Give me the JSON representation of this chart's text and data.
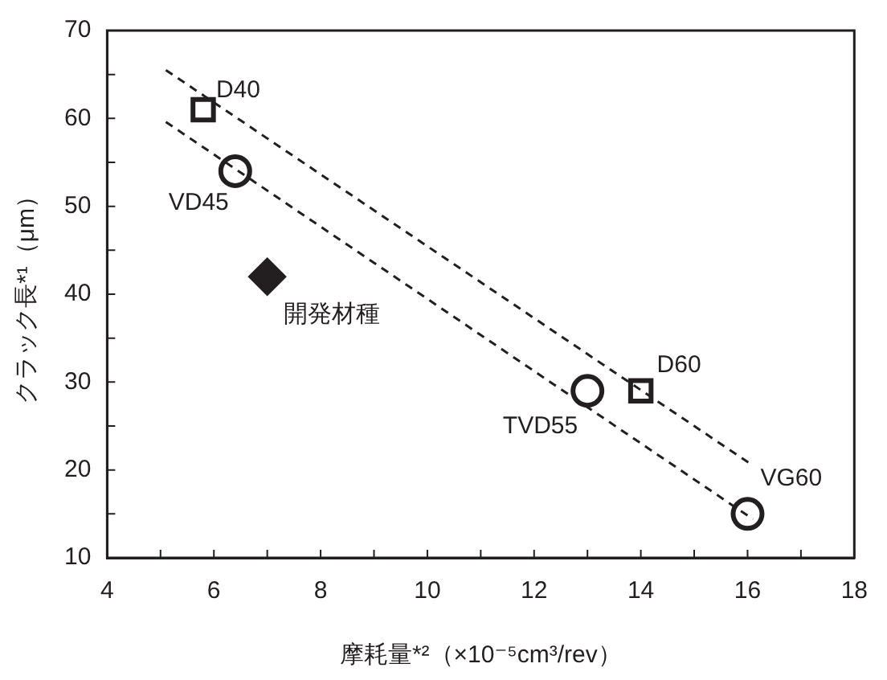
{
  "chart_data": {
    "type": "scatter",
    "xlabel": "摩耗量*²（×10⁻⁵cm³/rev）",
    "ylabel": "クラック長*¹（μm）",
    "xlim": [
      4,
      18
    ],
    "ylim": [
      10,
      70
    ],
    "xticks": [
      4,
      {
        "value": 5,
        "label": null
      },
      6,
      {
        "value": 7,
        "label": null
      },
      8,
      {
        "value": 9,
        "label": null
      },
      10,
      {
        "value": 11,
        "label": null
      },
      12,
      {
        "value": 13,
        "label": null
      },
      14,
      {
        "value": 15,
        "label": null
      },
      16,
      {
        "value": 17,
        "label": null
      },
      18
    ],
    "yticks": [
      10,
      {
        "value": 15,
        "label": null
      },
      20,
      {
        "value": 25,
        "label": null
      },
      30,
      {
        "value": 35,
        "label": null
      },
      40,
      {
        "value": 45,
        "label": null
      },
      50,
      {
        "value": 55,
        "label": null
      },
      60,
      {
        "value": 65,
        "label": null
      },
      70
    ],
    "grid": false,
    "legend": false,
    "series": [
      {
        "type": "scatter",
        "marker": "square",
        "color": "#231f20",
        "x": [
          5.8,
          14
        ],
        "values": [
          61,
          29
        ]
      },
      {
        "type": "scatter",
        "marker": "circle",
        "color": "#231f20",
        "x": [
          6.4,
          13,
          16
        ],
        "values": [
          54,
          29,
          15
        ]
      },
      {
        "type": "scatter",
        "marker": "diamond",
        "color": "#231f20",
        "x": [
          7
        ],
        "values": [
          42
        ]
      },
      {
        "type": "line",
        "marker": "none",
        "line_style": "dashed",
        "color": "#231f20",
        "x": [
          5.1,
          16.1
        ],
        "values": [
          65.5,
          20.5
        ]
      },
      {
        "type": "line",
        "marker": "none",
        "line_style": "dashed",
        "color": "#231f20",
        "x": [
          5.1,
          16.1
        ],
        "values": [
          59.6,
          14.4
        ]
      }
    ],
    "annotations": [
      {
        "text": "D40",
        "x": 5.8,
        "y": 61
      },
      {
        "text": "VD45",
        "x": 6.4,
        "y": 54
      },
      {
        "text": "開発材種",
        "x": 7,
        "y": 42
      },
      {
        "text": "TVD55",
        "x": 13,
        "y": 29
      },
      {
        "text": "D60",
        "x": 14,
        "y": 29
      },
      {
        "text": "VG60",
        "x": 16,
        "y": 15
      }
    ]
  }
}
